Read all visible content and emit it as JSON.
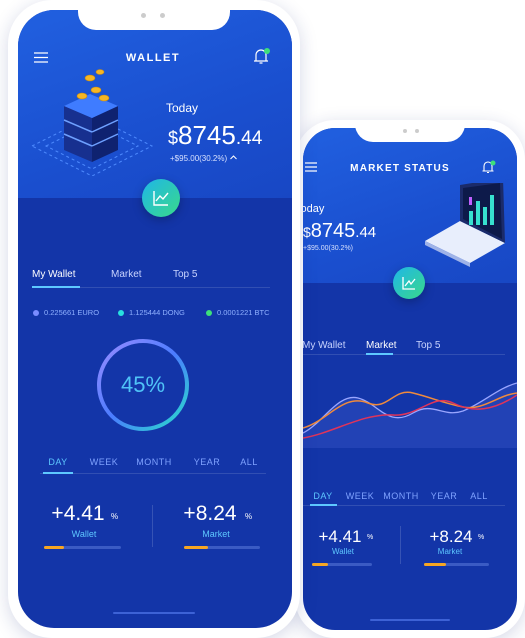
{
  "phones": [
    {
      "title": "WALLET",
      "balance": {
        "label": "Today",
        "currency": "$",
        "whole": "8745",
        "decimal": ".44",
        "change": "+$95.00(30.2%)"
      },
      "tabs": [
        "My Wallet",
        "Market",
        "Top 5"
      ],
      "legend": [
        "0.225661 EURO",
        "1.125444 DONG",
        "0.0001221 BTC"
      ],
      "progress": "45%",
      "periods": [
        "DAY",
        "WEEK",
        "MONTH",
        "YEAR",
        "ALL"
      ],
      "stats": [
        {
          "value": "+4.41",
          "unit": "%",
          "label": "Wallet"
        },
        {
          "value": "+8.24",
          "unit": "%",
          "label": "Market"
        }
      ]
    },
    {
      "title": "MARKET STATUS",
      "balance": {
        "label": "Today",
        "currency": "$",
        "whole": "8745",
        "decimal": ".44",
        "change": "+$95.00(30.2%)"
      },
      "tabs": [
        "My Wallet",
        "Market",
        "Top 5"
      ],
      "periods": [
        "DAY",
        "WEEK",
        "MONTH",
        "YEAR",
        "ALL"
      ],
      "stats": [
        {
          "value": "+4.41",
          "unit": "%",
          "label": "Wallet"
        },
        {
          "value": "+8.24",
          "unit": "%",
          "label": "Market"
        }
      ]
    }
  ]
}
